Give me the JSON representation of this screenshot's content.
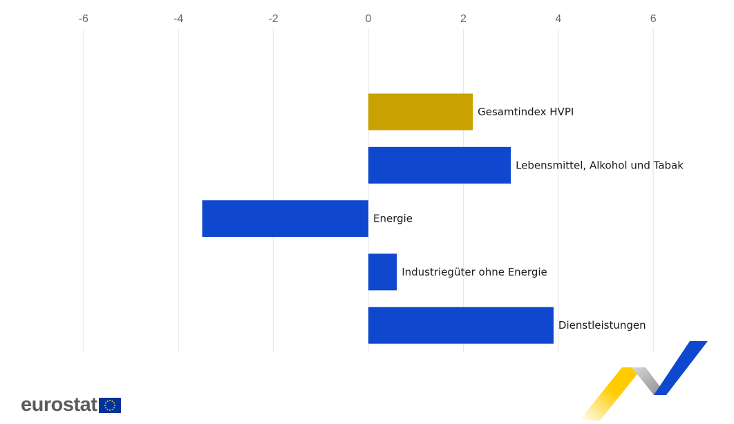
{
  "chart_data": {
    "type": "bar",
    "orientation": "horizontal",
    "categories": [
      "Gesamtindex HVPI",
      "Lebensmittel, Alkohol und Tabak",
      "Energie",
      "Industriegüter ohne Energie",
      "Dienstleistungen"
    ],
    "values": [
      2.2,
      3.0,
      -3.5,
      0.6,
      3.9
    ],
    "bar_colors": [
      "#c9a100",
      "#0f47cf",
      "#0f47cf",
      "#0f47cf",
      "#0f47cf"
    ],
    "xlim": [
      -6.6,
      7.3
    ],
    "xticks": [
      -6,
      -4,
      -2,
      0,
      2,
      4,
      6
    ],
    "xtick_labels": [
      "-6",
      "-4",
      "-2",
      "0",
      "2",
      "4",
      "6"
    ],
    "x_axis_position": "top",
    "grid": true,
    "title": "",
    "xlabel": "",
    "ylabel": ""
  },
  "branding": {
    "logo_text": "eurostat",
    "colors": {
      "flag_blue": "#003399",
      "flag_star": "#ffcc00",
      "ribbon_yellow": "#ffcc00",
      "ribbon_blue": "#0f47cf",
      "ribbon_grey": "#a8a8a8"
    }
  }
}
